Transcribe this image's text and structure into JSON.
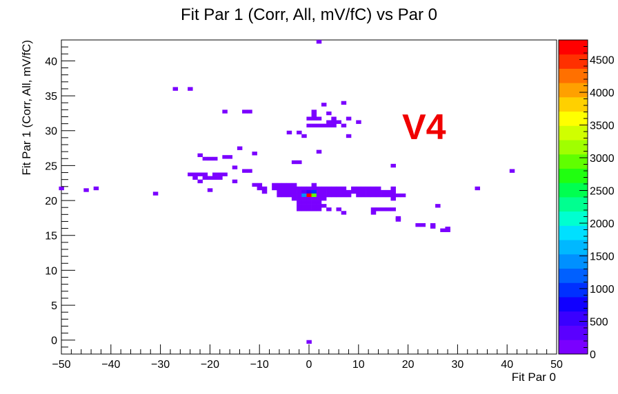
{
  "chart_data": {
    "type": "heatmap",
    "title": "Fit Par 1 (Corr, All, mV/fC) vs Par 0",
    "xlabel": "Fit Par 0",
    "ylabel": "Fit Par 1 (Corr, All, mV/fC)",
    "xlim": [
      -50,
      50
    ],
    "ylim": [
      -2,
      43
    ],
    "x_ticks": [
      -50,
      -40,
      -30,
      -20,
      -10,
      0,
      10,
      20,
      30,
      40,
      50
    ],
    "x_tick_labels": [
      "−50",
      "−40",
      "−30",
      "−20",
      "−10",
      "0",
      "10",
      "20",
      "30",
      "40",
      "50"
    ],
    "y_ticks": [
      0,
      5,
      10,
      15,
      20,
      25,
      30,
      35,
      40
    ],
    "y_tick_labels": [
      "0",
      "5",
      "10",
      "15",
      "20",
      "25",
      "30",
      "35",
      "40"
    ],
    "z_range": [
      0,
      4800
    ],
    "z_ticks": [
      0,
      500,
      1000,
      1500,
      2000,
      2500,
      3000,
      3500,
      4000,
      4500
    ],
    "z_tick_labels": [
      "0",
      "500",
      "1000",
      "1500",
      "2000",
      "2500",
      "3000",
      "3500",
      "4000",
      "4500"
    ],
    "palette": [
      "#7a00ff",
      "#5a00ff",
      "#3a00ff",
      "#1000ff",
      "#0030ff",
      "#0060ff",
      "#0090ff",
      "#00b8ff",
      "#00e0ff",
      "#00ffd0",
      "#00ff90",
      "#00ff50",
      "#20ff10",
      "#60ff00",
      "#a0ff00",
      "#d0ff00",
      "#ffff00",
      "#ffd000",
      "#ffa000",
      "#ff7000",
      "#ff3000",
      "#ff0000"
    ],
    "grid": false,
    "legend": "color scale on right",
    "bin_width": [
      1,
      0.5
    ],
    "cells": [
      [
        2,
        42.75,
        1
      ],
      [
        0,
        -0.25,
        1
      ],
      [
        -27,
        36.0,
        1
      ],
      [
        -24,
        36.0,
        1
      ],
      [
        7,
        34.0,
        1
      ],
      [
        3,
        33.75,
        1
      ],
      [
        -17,
        32.75,
        1
      ],
      [
        -13,
        32.75,
        1
      ],
      [
        -12,
        32.75,
        1
      ],
      [
        1,
        32.75,
        1
      ],
      [
        4,
        32.5,
        1
      ],
      [
        1,
        32.25,
        1
      ],
      [
        0,
        31.75,
        1
      ],
      [
        1,
        31.75,
        1
      ],
      [
        2,
        31.75,
        1
      ],
      [
        5,
        31.75,
        1
      ],
      [
        8,
        31.75,
        1
      ],
      [
        4,
        31.25,
        1
      ],
      [
        5,
        31.25,
        1
      ],
      [
        6,
        31.25,
        1
      ],
      [
        10,
        31.25,
        1
      ],
      [
        0,
        30.75,
        1
      ],
      [
        1,
        30.75,
        1
      ],
      [
        2,
        30.75,
        1
      ],
      [
        3,
        30.75,
        1
      ],
      [
        4,
        30.75,
        1
      ],
      [
        5,
        30.75,
        1
      ],
      [
        7,
        30.75,
        1
      ],
      [
        -4,
        29.75,
        1
      ],
      [
        -2,
        29.75,
        1
      ],
      [
        -1,
        29.25,
        1
      ],
      [
        8,
        29.25,
        1
      ],
      [
        -14,
        27.5,
        1
      ],
      [
        2,
        27.0,
        1
      ],
      [
        -11,
        26.75,
        1
      ],
      [
        -22,
        26.5,
        1
      ],
      [
        -21,
        26.0,
        1
      ],
      [
        -20,
        26.0,
        1
      ],
      [
        -19,
        26.0,
        1
      ],
      [
        -17,
        26.25,
        1
      ],
      [
        -16,
        26.25,
        1
      ],
      [
        -3,
        25.5,
        1
      ],
      [
        -2,
        25.5,
        1
      ],
      [
        17,
        25.0,
        1
      ],
      [
        -15,
        24.75,
        1
      ],
      [
        -13,
        24.25,
        1
      ],
      [
        -12,
        24.25,
        1
      ],
      [
        41,
        24.25,
        1
      ],
      [
        -24,
        23.75,
        1
      ],
      [
        -23,
        23.75,
        1
      ],
      [
        -22,
        23.75,
        1
      ],
      [
        -21,
        23.75,
        1
      ],
      [
        -19,
        23.75,
        1
      ],
      [
        -18,
        23.75,
        1
      ],
      [
        -17,
        23.75,
        1
      ],
      [
        -23,
        23.25,
        1
      ],
      [
        -21,
        23.25,
        1
      ],
      [
        -20,
        23.25,
        1
      ],
      [
        -19,
        23.25,
        1
      ],
      [
        -18,
        23.25,
        1
      ],
      [
        -22,
        22.75,
        1
      ],
      [
        -15,
        22.75,
        1
      ],
      [
        -11,
        22.25,
        1
      ],
      [
        -10,
        22.25,
        1
      ],
      [
        -7,
        22.25,
        1
      ],
      [
        -6,
        22.25,
        1
      ],
      [
        -5,
        22.25,
        1
      ],
      [
        -4,
        22.25,
        1
      ],
      [
        -3,
        22.25,
        1
      ],
      [
        1,
        22.25,
        1
      ],
      [
        -50,
        21.75,
        1
      ],
      [
        -43,
        21.75,
        1
      ],
      [
        -10,
        21.75,
        1
      ],
      [
        -9,
        21.75,
        1
      ],
      [
        -7,
        21.75,
        1
      ],
      [
        -6,
        21.75,
        1
      ],
      [
        -5,
        21.75,
        1
      ],
      [
        -4,
        21.75,
        1
      ],
      [
        -3,
        21.75,
        1
      ],
      [
        -2,
        21.75,
        1
      ],
      [
        -1,
        21.75,
        1
      ],
      [
        0,
        21.75,
        1
      ],
      [
        1,
        21.75,
        1
      ],
      [
        2,
        21.75,
        1
      ],
      [
        3,
        21.75,
        1
      ],
      [
        4,
        21.75,
        1
      ],
      [
        5,
        21.75,
        1
      ],
      [
        6,
        21.75,
        1
      ],
      [
        7,
        21.75,
        1
      ],
      [
        9,
        21.75,
        1
      ],
      [
        10,
        21.75,
        1
      ],
      [
        11,
        21.75,
        1
      ],
      [
        12,
        21.75,
        1
      ],
      [
        13,
        21.75,
        1
      ],
      [
        14,
        21.75,
        1
      ],
      [
        17,
        21.75,
        1
      ],
      [
        34,
        21.75,
        1
      ],
      [
        -45,
        21.5,
        1
      ],
      [
        -20,
        21.5,
        1
      ],
      [
        -9,
        21.25,
        1
      ],
      [
        -6,
        21.25,
        1
      ],
      [
        -5,
        21.25,
        1
      ],
      [
        -4,
        21.25,
        1
      ],
      [
        -3,
        21.25,
        1
      ],
      [
        -2,
        21.25,
        1
      ],
      [
        -1,
        21.25,
        300
      ],
      [
        0,
        21.25,
        450
      ],
      [
        1,
        21.25,
        900
      ],
      [
        2,
        21.25,
        200
      ],
      [
        3,
        21.25,
        1
      ],
      [
        4,
        21.25,
        1
      ],
      [
        5,
        21.25,
        1
      ],
      [
        6,
        21.25,
        1
      ],
      [
        7,
        21.25,
        1
      ],
      [
        8,
        21.25,
        1
      ],
      [
        9,
        21.25,
        1
      ],
      [
        10,
        21.25,
        1
      ],
      [
        11,
        21.25,
        1
      ],
      [
        12,
        21.25,
        1
      ],
      [
        13,
        21.25,
        1
      ],
      [
        14,
        21.25,
        1
      ],
      [
        15,
        21.25,
        1
      ],
      [
        16,
        21.25,
        1
      ],
      [
        17,
        21.25,
        1
      ],
      [
        -31,
        21.0,
        1
      ],
      [
        -6,
        20.75,
        1
      ],
      [
        -5,
        20.75,
        1
      ],
      [
        -4,
        20.75,
        1
      ],
      [
        -3,
        20.75,
        1
      ],
      [
        -2,
        20.75,
        1
      ],
      [
        -1,
        20.75,
        1500
      ],
      [
        0,
        20.75,
        4800
      ],
      [
        1,
        20.75,
        3000
      ],
      [
        2,
        20.75,
        1
      ],
      [
        3,
        20.75,
        1
      ],
      [
        4,
        20.75,
        1
      ],
      [
        5,
        20.75,
        1
      ],
      [
        6,
        20.75,
        1
      ],
      [
        7,
        20.75,
        1
      ],
      [
        8,
        20.75,
        1
      ],
      [
        10,
        20.75,
        1
      ],
      [
        11,
        20.75,
        1
      ],
      [
        12,
        20.75,
        1
      ],
      [
        13,
        20.75,
        1
      ],
      [
        14,
        20.75,
        1
      ],
      [
        15,
        20.75,
        1
      ],
      [
        16,
        20.75,
        1
      ],
      [
        17,
        20.75,
        1
      ],
      [
        18,
        20.75,
        1
      ],
      [
        19,
        20.75,
        1
      ],
      [
        -3,
        20.25,
        1
      ],
      [
        -2,
        20.25,
        1
      ],
      [
        -1,
        20.25,
        1
      ],
      [
        0,
        20.25,
        100
      ],
      [
        1,
        20.25,
        1
      ],
      [
        2,
        20.25,
        1
      ],
      [
        3,
        20.25,
        1
      ],
      [
        17,
        20.25,
        1
      ],
      [
        -2,
        19.75,
        1
      ],
      [
        -1,
        19.75,
        1
      ],
      [
        0,
        19.75,
        1
      ],
      [
        1,
        19.75,
        1
      ],
      [
        2,
        19.75,
        1
      ],
      [
        -2,
        19.25,
        1
      ],
      [
        -1,
        19.25,
        1
      ],
      [
        0,
        19.25,
        1
      ],
      [
        1,
        19.25,
        1
      ],
      [
        2,
        19.25,
        1
      ],
      [
        3,
        19.25,
        1
      ],
      [
        26,
        19.25,
        1
      ],
      [
        -1,
        18.75,
        1
      ],
      [
        0,
        18.75,
        1
      ],
      [
        1,
        18.75,
        1
      ],
      [
        2,
        18.75,
        1
      ],
      [
        4,
        18.75,
        1
      ],
      [
        6,
        18.75,
        1
      ],
      [
        13,
        18.75,
        1
      ],
      [
        14,
        18.75,
        1
      ],
      [
        15,
        18.75,
        1
      ],
      [
        16,
        18.75,
        1
      ],
      [
        17,
        18.75,
        1
      ],
      [
        -2,
        18.75,
        1
      ],
      [
        7,
        18.25,
        1
      ],
      [
        13,
        18.25,
        1
      ],
      [
        18,
        17.5,
        1
      ],
      [
        18,
        17.25,
        1
      ],
      [
        22,
        16.5,
        1
      ],
      [
        23,
        16.5,
        1
      ],
      [
        25,
        16.5,
        1
      ],
      [
        25,
        16.25,
        1
      ],
      [
        27,
        15.75,
        1
      ],
      [
        28,
        15.75,
        1
      ],
      [
        28,
        16.0,
        1
      ]
    ]
  },
  "watermark": {
    "text": "V4",
    "color": "#f00000"
  }
}
